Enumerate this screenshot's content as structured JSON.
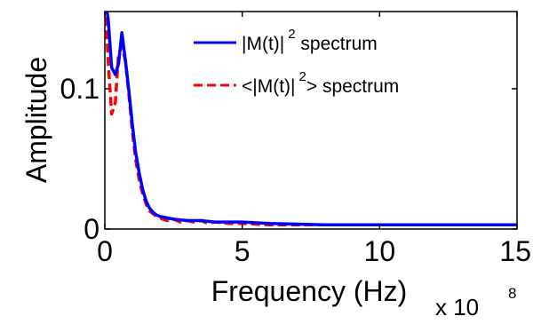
{
  "chart_data": {
    "type": "line",
    "xlabel": "Frequency (Hz)",
    "ylabel": "Amplitude",
    "x_multiplier": {
      "base": "x 10",
      "exponent": "8"
    },
    "xlim": [
      0,
      15
    ],
    "ylim": [
      0,
      0.155
    ],
    "x_ticks": [
      "0",
      "5",
      "10",
      "15"
    ],
    "y_ticks": [
      "0",
      "0.1"
    ],
    "x_tick_values": [
      0,
      5,
      10,
      15
    ],
    "y_tick_values": [
      0,
      0.1
    ],
    "grid": false,
    "legend_position": "top-right",
    "series": [
      {
        "name": "|M(t)|² spectrum",
        "name_parts": {
          "pre": "|M(t)|",
          "sup": "2",
          "post": " spectrum"
        },
        "color": "#0000ff",
        "style": "solid",
        "x": [
          0.0,
          0.12,
          0.25,
          0.38,
          0.5,
          0.62,
          0.75,
          0.88,
          1.0,
          1.12,
          1.25,
          1.38,
          1.5,
          1.62,
          1.75,
          1.88,
          2.0,
          2.25,
          2.5,
          3.0,
          3.5,
          4.0,
          5.0,
          6.0,
          8.0,
          10.0,
          12.0,
          15.0
        ],
        "y": [
          0.165,
          0.15,
          0.115,
          0.11,
          0.118,
          0.14,
          0.12,
          0.098,
          0.075,
          0.055,
          0.04,
          0.028,
          0.02,
          0.015,
          0.012,
          0.01,
          0.009,
          0.008,
          0.007,
          0.006,
          0.006,
          0.005,
          0.005,
          0.004,
          0.003,
          0.003,
          0.003,
          0.003
        ]
      },
      {
        "name": "<|M(t)|²> spectrum",
        "name_parts": {
          "pre": "<|M(t)|",
          "sup": "2",
          "post": "> spectrum"
        },
        "color": "#ff0000",
        "style": "dashed",
        "x": [
          0.0,
          0.12,
          0.25,
          0.38,
          0.5,
          0.62,
          0.75,
          0.88,
          1.0,
          1.12,
          1.25,
          1.38,
          1.5,
          1.62,
          1.75,
          1.88,
          2.0,
          2.25,
          2.5,
          2.75,
          3.0,
          3.25,
          3.5,
          3.75,
          4.0,
          4.5,
          5.0,
          6.0,
          8.0,
          10.0,
          12.0,
          15.0
        ],
        "y": [
          0.17,
          0.12,
          0.082,
          0.09,
          0.125,
          0.13,
          0.12,
          0.095,
          0.07,
          0.05,
          0.035,
          0.025,
          0.018,
          0.013,
          0.011,
          0.009,
          0.008,
          0.006,
          0.007,
          0.005,
          0.006,
          0.005,
          0.006,
          0.004,
          0.005,
          0.004,
          0.004,
          0.003,
          0.003,
          0.003,
          0.003,
          0.003
        ]
      }
    ]
  }
}
